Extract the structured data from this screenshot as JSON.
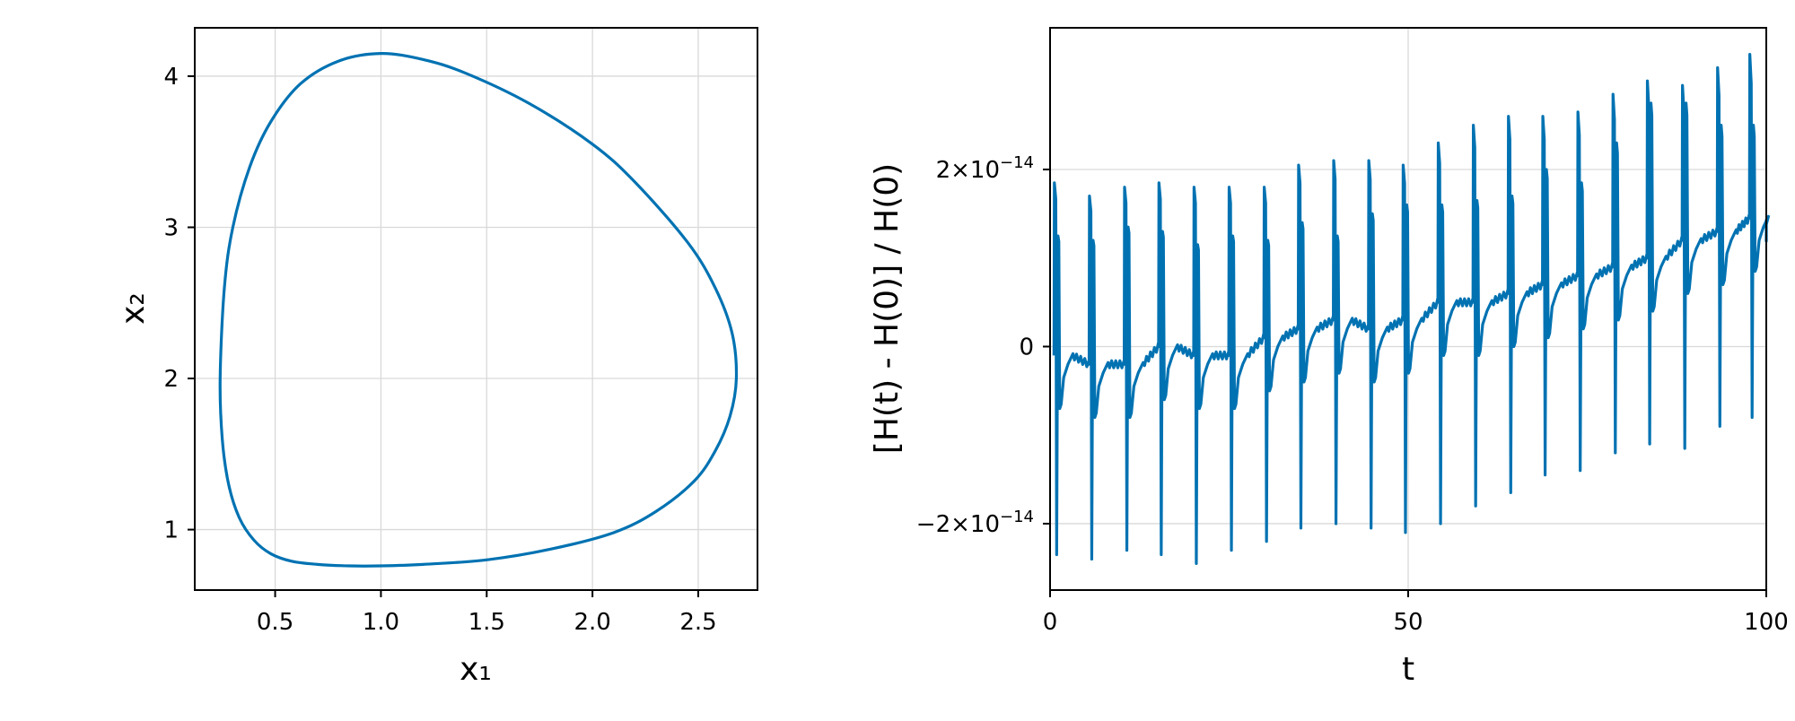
{
  "colors": {
    "series": "#0072b2",
    "grid": "#d9d9d9",
    "axis": "#000000"
  },
  "chart_data": [
    {
      "type": "line",
      "description": "phase portrait (closed orbit)",
      "xlabel": "x₁",
      "ylabel": "x₂",
      "xlim": [
        0.12,
        2.78
      ],
      "ylim": [
        0.6,
        4.32
      ],
      "xticks": [
        {
          "value": 0.5,
          "label": "0.5"
        },
        {
          "value": 1.0,
          "label": "1.0"
        },
        {
          "value": 1.5,
          "label": "1.5"
        },
        {
          "value": 2.0,
          "label": "2.0"
        },
        {
          "value": 2.5,
          "label": "2.5"
        }
      ],
      "yticks": [
        {
          "value": 1,
          "label": "1"
        },
        {
          "value": 2,
          "label": "2"
        },
        {
          "value": 3,
          "label": "3"
        },
        {
          "value": 4,
          "label": "4"
        }
      ],
      "grid": true,
      "series": [
        {
          "x": [
            2.68,
            2.66,
            2.58,
            2.45,
            2.2,
            2.0,
            1.7,
            1.4,
            1.2,
            1.0,
            0.8,
            0.62,
            0.48,
            0.38,
            0.3,
            0.26,
            0.24,
            0.25,
            0.28,
            0.33,
            0.4,
            0.48,
            0.58,
            0.7,
            0.85,
            1.0,
            1.2,
            1.5,
            1.8,
            2.1,
            2.3,
            2.48,
            2.58,
            2.65,
            2.68
          ],
          "y": [
            2.0,
            2.3,
            2.6,
            2.9,
            3.3,
            3.55,
            3.82,
            4.02,
            4.11,
            4.15,
            4.1,
            3.95,
            3.7,
            3.4,
            3.0,
            2.6,
            2.0,
            1.6,
            1.3,
            1.08,
            0.93,
            0.84,
            0.79,
            0.77,
            0.76,
            0.76,
            0.77,
            0.8,
            0.87,
            0.98,
            1.12,
            1.32,
            1.52,
            1.75,
            2.0
          ]
        }
      ]
    },
    {
      "type": "line",
      "description": "relative energy error",
      "xlabel": "t",
      "ylabel": "[H(t) - H(0)] / H(0)",
      "xlim": [
        0,
        100
      ],
      "ylim": [
        -2.75e-14,
        3.6e-14
      ],
      "xticks": [
        {
          "value": 0,
          "label": "0"
        },
        {
          "value": 50,
          "label": "50"
        },
        {
          "value": 100,
          "label": "100"
        }
      ],
      "yticks": [
        {
          "value": -2e-14,
          "label": "−2×10",
          "exp": "−14"
        },
        {
          "value": 0,
          "label": "0",
          "exp": ""
        },
        {
          "value": 2e-14,
          "label": "2×10",
          "exp": "−14"
        }
      ],
      "grid": true,
      "period": 4.87,
      "spikes": [
        {
          "t": 0.6,
          "base": -1e-15,
          "high": 1.85e-14,
          "low": -2.35e-14,
          "mid": 1.25e-14
        },
        {
          "t": 5.5,
          "base": -2e-15,
          "high": 1.7e-14,
          "low": -2.4e-14,
          "mid": 1.2e-14
        },
        {
          "t": 10.4,
          "base": -2e-15,
          "high": 1.8e-14,
          "low": -2.3e-14,
          "mid": 1.35e-14
        },
        {
          "t": 15.2,
          "base": 0.0,
          "high": 1.85e-14,
          "low": -2.35e-14,
          "mid": 1.3e-14
        },
        {
          "t": 20.1,
          "base": -1e-15,
          "high": 1.8e-14,
          "low": -2.45e-14,
          "mid": 1.15e-14
        },
        {
          "t": 25.0,
          "base": -1e-15,
          "high": 1.8e-14,
          "low": -2.3e-14,
          "mid": 1.25e-14
        },
        {
          "t": 29.9,
          "base": 1e-15,
          "high": 1.8e-14,
          "low": -2.2e-14,
          "mid": 1.2e-14
        },
        {
          "t": 34.7,
          "base": 2e-15,
          "high": 2.05e-14,
          "low": -2.05e-14,
          "mid": 1.4e-14
        },
        {
          "t": 39.6,
          "base": 3e-15,
          "high": 2.1e-14,
          "low": -2e-14,
          "mid": 1.25e-14
        },
        {
          "t": 44.5,
          "base": 2e-15,
          "high": 2.1e-14,
          "low": -2.05e-14,
          "mid": 1.5e-14
        },
        {
          "t": 49.3,
          "base": 3e-15,
          "high": 2.05e-14,
          "low": -2.1e-14,
          "mid": 1.6e-14
        },
        {
          "t": 54.2,
          "base": 5e-15,
          "high": 2.3e-14,
          "low": -2e-14,
          "mid": 1.6e-14
        },
        {
          "t": 59.1,
          "base": 5e-15,
          "high": 2.5e-14,
          "low": -1.8e-14,
          "mid": 1.65e-14
        },
        {
          "t": 64.0,
          "base": 6e-15,
          "high": 2.6e-14,
          "low": -1.65e-14,
          "mid": 1.7e-14
        },
        {
          "t": 68.8,
          "base": 7e-15,
          "high": 2.6e-14,
          "low": -1.45e-14,
          "mid": 2e-14
        },
        {
          "t": 73.7,
          "base": 8e-15,
          "high": 2.65e-14,
          "low": -1.4e-14,
          "mid": 1.85e-14
        },
        {
          "t": 78.6,
          "base": 9e-15,
          "high": 2.85e-14,
          "low": -1.2e-14,
          "mid": 2.3e-14
        },
        {
          "t": 83.4,
          "base": 1e-14,
          "high": 3e-14,
          "low": -1.1e-14,
          "mid": 2.75e-14
        },
        {
          "t": 88.3,
          "base": 1.2e-14,
          "high": 2.95e-14,
          "low": -1.15e-14,
          "mid": 2.75e-14
        },
        {
          "t": 93.2,
          "base": 1.3e-14,
          "high": 3.15e-14,
          "low": -9e-15,
          "mid": 2.5e-14
        },
        {
          "t": 97.7,
          "base": 1.45e-14,
          "high": 3.3e-14,
          "low": -8e-15,
          "mid": 2.5e-14
        }
      ],
      "end_value": 1.2e-14
    }
  ]
}
